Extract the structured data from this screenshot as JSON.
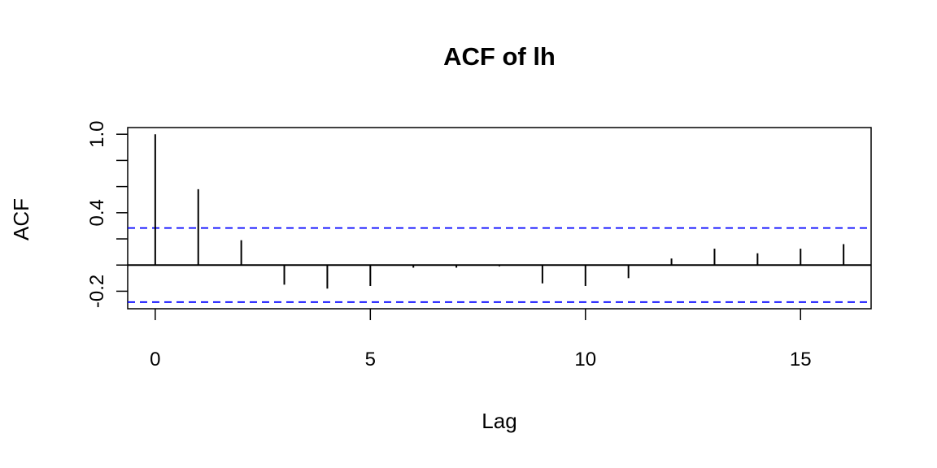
{
  "chart_data": {
    "type": "acf",
    "title": "ACF of lh",
    "x_label": "Lag",
    "y_label": "ACF",
    "x": [
      0,
      1,
      2,
      3,
      4,
      5,
      6,
      7,
      8,
      9,
      10,
      11,
      12,
      13,
      14,
      15,
      16
    ],
    "values": [
      1.0,
      0.58,
      0.19,
      -0.15,
      -0.18,
      -0.16,
      -0.02,
      -0.02,
      -0.01,
      -0.14,
      -0.16,
      -0.1,
      0.05,
      0.125,
      0.09,
      0.125,
      0.16
    ],
    "color": "#000000",
    "confidence_bounds": [
      0.283,
      -0.283
    ],
    "confidence_color": "#0000ff",
    "xlim": [
      -0.64,
      16.64
    ],
    "xticks": [
      0,
      5,
      10,
      15
    ],
    "ylim": [
      -0.334,
      1.051
    ],
    "yticks": [
      {
        "value": -0.2,
        "label": "-0.2"
      },
      {
        "value": 0,
        "label": null
      },
      {
        "value": 0.2,
        "label": null
      },
      {
        "value": 0.4,
        "label": "0.4"
      },
      {
        "value": 0.6,
        "label": null
      },
      {
        "value": 0.8,
        "label": null
      },
      {
        "value": 1.0,
        "label": "1.0"
      }
    ],
    "grid": false
  }
}
